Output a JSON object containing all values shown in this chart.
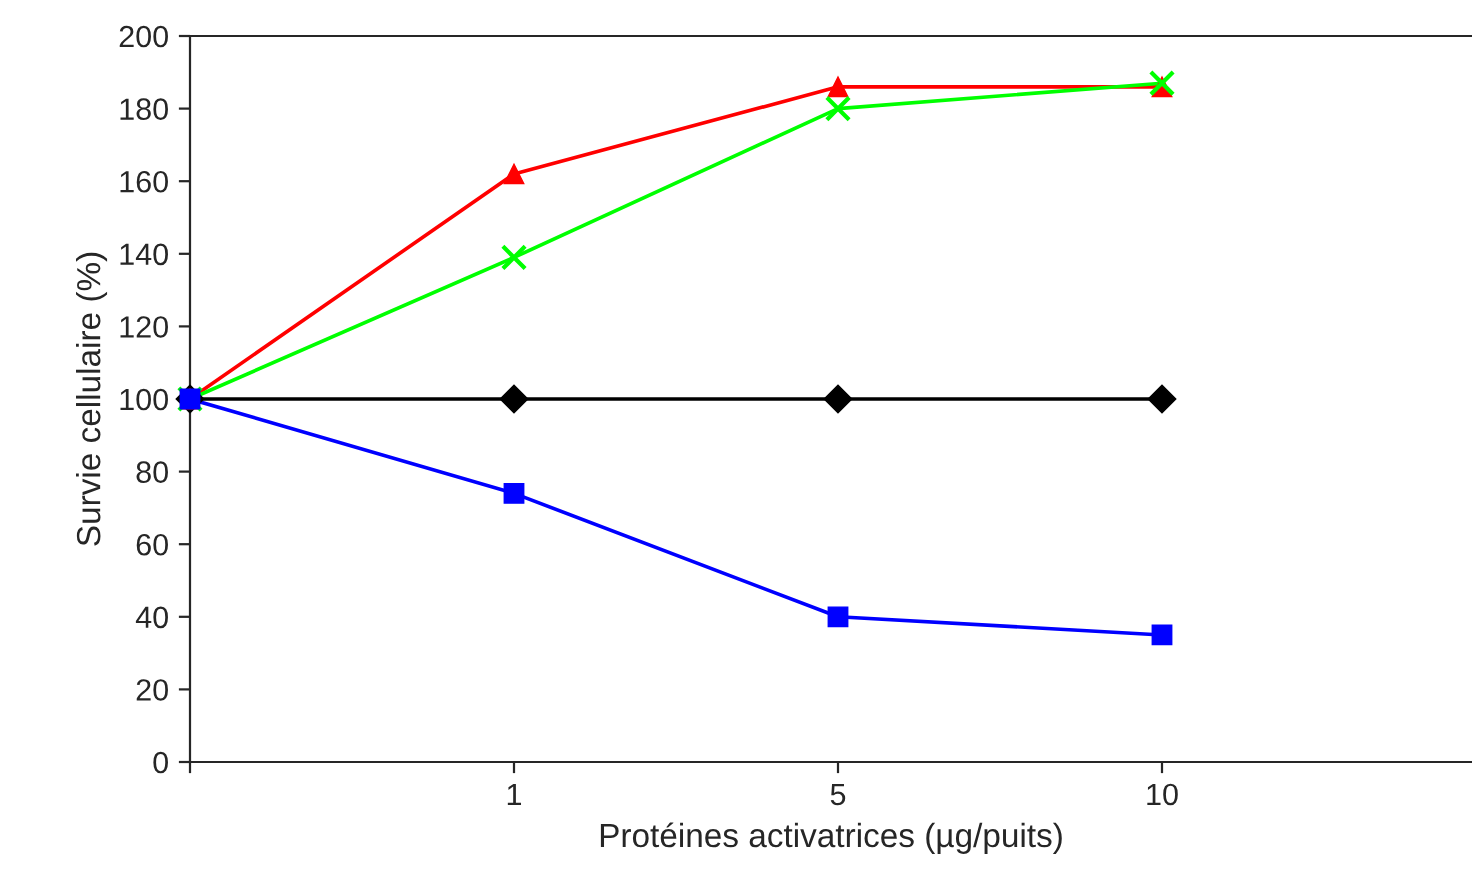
{
  "chart_data": {
    "type": "line",
    "xlabel": "Protéines activatrices (µg/puits)",
    "ylabel": "Survie cellulaire (%)",
    "categories": [
      null,
      "1",
      "5",
      "10"
    ],
    "series": [
      {
        "color": "#000000",
        "marker": "diamond",
        "values": [
          100,
          100,
          100,
          100
        ]
      },
      {
        "color": "#ff0000",
        "marker": "triangle",
        "values": [
          100,
          162,
          186,
          186
        ]
      },
      {
        "color": "#00ff00",
        "marker": "cross",
        "values": [
          100,
          139,
          180,
          187
        ]
      },
      {
        "color": "#0000ff",
        "marker": "square",
        "values": [
          100,
          74,
          40,
          35
        ]
      }
    ],
    "ylim": [
      0,
      200
    ],
    "yticks": [
      0,
      20,
      40,
      60,
      80,
      100,
      120,
      140,
      160,
      180,
      200
    ],
    "grid": false,
    "line_style": "solid"
  }
}
